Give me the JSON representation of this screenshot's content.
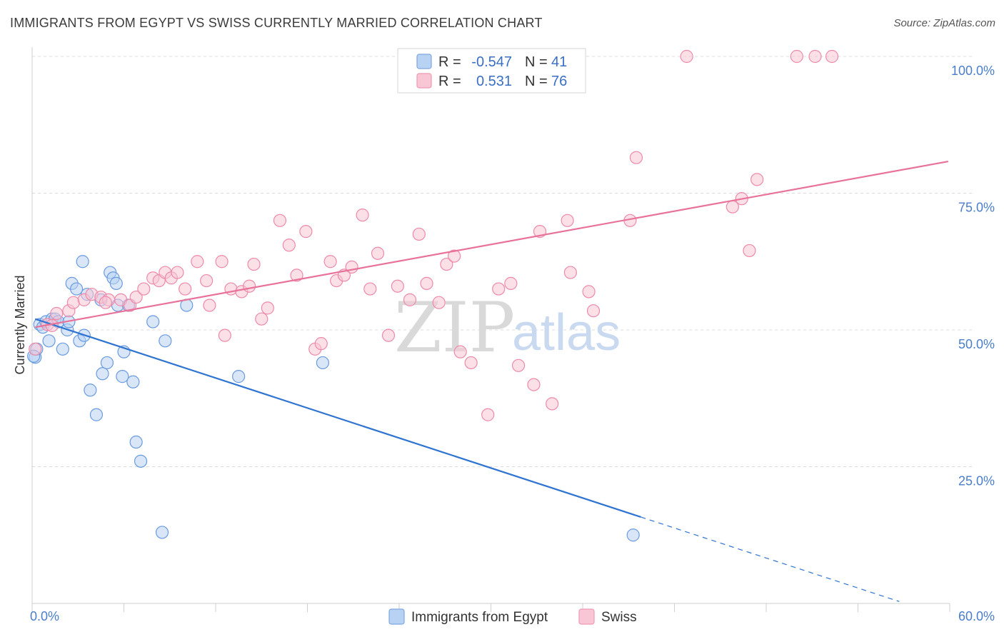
{
  "header": {
    "title": "IMMIGRANTS FROM EGYPT VS SWISS CURRENTLY MARRIED CORRELATION CHART",
    "source": "Source: ZipAtlas.com"
  },
  "watermark": {
    "zip": "ZIP",
    "atlas": "atlas"
  },
  "legend_box": {
    "rows": [
      {
        "r_label": "R =",
        "r_value": "-0.547",
        "n_label": "N =",
        "n_value": "41",
        "color": "#a9c8f0"
      },
      {
        "r_label": "R =",
        "r_value": "0.531",
        "n_label": "N =",
        "n_value": "76",
        "color": "#f6b9cc"
      }
    ]
  },
  "chart_data": {
    "type": "scatter",
    "title": "IMMIGRANTS FROM EGYPT VS SWISS CURRENTLY MARRIED CORRELATION CHART",
    "xlabel": "",
    "ylabel": "Currently Married",
    "xlim": [
      0,
      60
    ],
    "ylim": [
      0,
      105
    ],
    "x_tick_labels": [
      "0.0%",
      "60.0%"
    ],
    "y_ticks": [
      25,
      50,
      75,
      100
    ],
    "y_tick_labels": [
      "25.0%",
      "50.0%",
      "75.0%",
      "100.0%"
    ],
    "grid": true,
    "legend_position": "bottom",
    "series": [
      {
        "name": "Immigrants from Egypt",
        "color": "#6a9be0",
        "fill": "#b8d2f3",
        "r": -0.547,
        "n": 41,
        "trend": {
          "x0": 0.2,
          "y0": 52.0,
          "x1": 39.8,
          "y1": 15.8,
          "dash_x1": 56.7
        },
        "points": [
          [
            0.2,
            45.0
          ],
          [
            0.3,
            46.5
          ],
          [
            0.5,
            51.0
          ],
          [
            0.7,
            50.5
          ],
          [
            0.9,
            51.5
          ],
          [
            1.1,
            48.0
          ],
          [
            1.3,
            52.0
          ],
          [
            1.5,
            52.0
          ],
          [
            1.7,
            51.5
          ],
          [
            2.0,
            46.5
          ],
          [
            2.3,
            50.0
          ],
          [
            2.4,
            51.5
          ],
          [
            2.6,
            58.5
          ],
          [
            2.9,
            57.5
          ],
          [
            3.1,
            48.0
          ],
          [
            3.3,
            62.5
          ],
          [
            3.4,
            49.0
          ],
          [
            3.6,
            56.5
          ],
          [
            3.8,
            39.0
          ],
          [
            4.2,
            34.5
          ],
          [
            4.5,
            55.5
          ],
          [
            4.6,
            42.0
          ],
          [
            4.9,
            44.0
          ],
          [
            5.1,
            60.5
          ],
          [
            5.3,
            59.5
          ],
          [
            5.5,
            58.5
          ],
          [
            5.6,
            54.5
          ],
          [
            5.9,
            41.5
          ],
          [
            6.0,
            46.0
          ],
          [
            6.3,
            54.5
          ],
          [
            6.6,
            40.5
          ],
          [
            6.8,
            29.5
          ],
          [
            7.1,
            26.0
          ],
          [
            7.9,
            51.5
          ],
          [
            8.5,
            13.0
          ],
          [
            8.7,
            48.0
          ],
          [
            10.1,
            54.5
          ],
          [
            13.5,
            41.5
          ],
          [
            19.0,
            44.0
          ],
          [
            39.3,
            12.5
          ],
          [
            0.1,
            45.2
          ]
        ]
      },
      {
        "name": "Swiss",
        "color": "#ee8aa8",
        "fill": "#f8c6d5",
        "r": 0.531,
        "n": 76,
        "trend": {
          "x0": 0.2,
          "y0": 50.5,
          "x1": 59.9,
          "y1": 80.8
        },
        "points": [
          [
            0.2,
            46.5
          ],
          [
            1.0,
            51.0
          ],
          [
            1.6,
            53.0
          ],
          [
            2.4,
            53.5
          ],
          [
            2.7,
            55.0
          ],
          [
            3.4,
            55.5
          ],
          [
            3.9,
            56.5
          ],
          [
            4.5,
            56.0
          ],
          [
            5.0,
            55.5
          ],
          [
            5.8,
            55.5
          ],
          [
            6.4,
            54.5
          ],
          [
            6.8,
            56.0
          ],
          [
            7.3,
            57.5
          ],
          [
            7.9,
            59.5
          ],
          [
            8.3,
            59.0
          ],
          [
            8.7,
            60.5
          ],
          [
            9.1,
            59.5
          ],
          [
            9.5,
            60.5
          ],
          [
            10.0,
            57.5
          ],
          [
            10.8,
            62.5
          ],
          [
            11.4,
            59.0
          ],
          [
            11.6,
            54.5
          ],
          [
            12.4,
            62.5
          ],
          [
            12.6,
            49.0
          ],
          [
            13.0,
            57.5
          ],
          [
            13.7,
            57.0
          ],
          [
            14.2,
            58.0
          ],
          [
            14.5,
            62.0
          ],
          [
            15.0,
            52.0
          ],
          [
            15.4,
            54.0
          ],
          [
            16.2,
            70.0
          ],
          [
            16.8,
            65.5
          ],
          [
            17.3,
            60.0
          ],
          [
            17.9,
            68.0
          ],
          [
            18.5,
            46.5
          ],
          [
            18.9,
            47.5
          ],
          [
            19.5,
            62.5
          ],
          [
            19.9,
            59.0
          ],
          [
            20.4,
            60.0
          ],
          [
            20.9,
            61.5
          ],
          [
            21.6,
            71.0
          ],
          [
            22.1,
            57.5
          ],
          [
            22.6,
            64.0
          ],
          [
            23.3,
            49.0
          ],
          [
            23.9,
            58.0
          ],
          [
            24.7,
            55.5
          ],
          [
            25.3,
            67.5
          ],
          [
            25.8,
            58.5
          ],
          [
            26.6,
            55.0
          ],
          [
            27.1,
            62.0
          ],
          [
            27.6,
            63.5
          ],
          [
            28.0,
            46.0
          ],
          [
            28.7,
            44.0
          ],
          [
            29.8,
            34.5
          ],
          [
            30.5,
            57.5
          ],
          [
            31.3,
            58.5
          ],
          [
            31.8,
            43.5
          ],
          [
            32.8,
            40.0
          ],
          [
            33.2,
            68.0
          ],
          [
            34.0,
            36.5
          ],
          [
            35.0,
            70.0
          ],
          [
            35.2,
            60.5
          ],
          [
            36.4,
            57.0
          ],
          [
            36.7,
            53.5
          ],
          [
            39.1,
            70.0
          ],
          [
            39.5,
            81.5
          ],
          [
            42.8,
            100.0
          ],
          [
            45.8,
            72.5
          ],
          [
            46.4,
            74.0
          ],
          [
            46.9,
            64.5
          ],
          [
            47.4,
            77.5
          ],
          [
            50.0,
            100.0
          ],
          [
            51.2,
            100.0
          ],
          [
            52.3,
            100.0
          ],
          [
            1.3,
            50.8
          ],
          [
            4.8,
            55.0
          ]
        ]
      }
    ]
  }
}
